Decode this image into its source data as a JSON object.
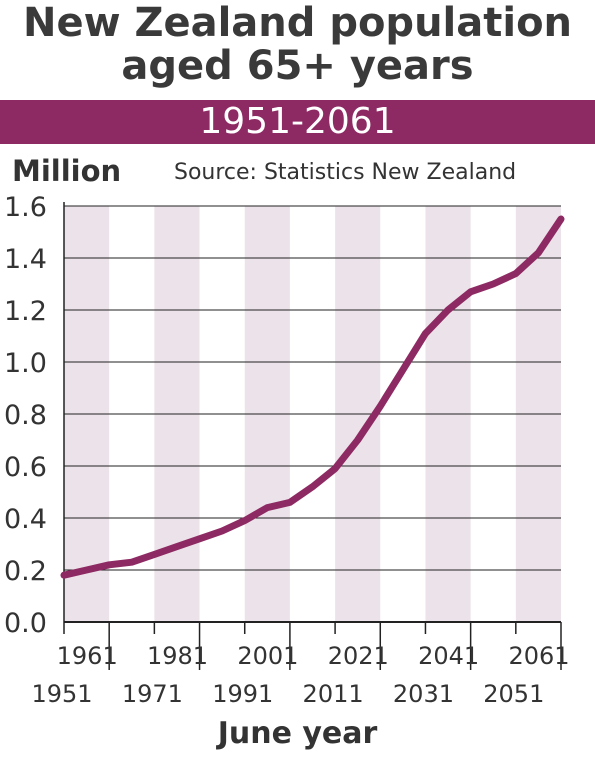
{
  "title_line1": "New Zealand population",
  "title_line2": "aged 65+ years",
  "period_band": "1951-2061",
  "y_axis_unit": "Million",
  "source_note": "Source: Statistics New Zealand",
  "x_axis_title": "June year",
  "colors": {
    "band": "#8e2a63",
    "line": "#8e2a63",
    "stripe": "#ece3ea",
    "grid": "#222222"
  },
  "chart_data": {
    "type": "line",
    "title": "New Zealand population aged 65+ years",
    "subtitle": "1951-2061",
    "xlabel": "June year",
    "ylabel": "Million",
    "xlim": [
      1951,
      2061
    ],
    "ylim": [
      0,
      1.6
    ],
    "yticks": [
      "0.0",
      "0.2",
      "0.4",
      "0.6",
      "0.8",
      "1.0",
      "1.2",
      "1.4",
      "1.6"
    ],
    "xticks_upper": [
      "1961",
      "1981",
      "2001",
      "2021",
      "2041",
      "2061"
    ],
    "xticks_lower": [
      "1951",
      "1971",
      "1991",
      "2011",
      "2031",
      "2051"
    ],
    "grid": true,
    "series": [
      {
        "x": [
          1951,
          1956,
          1961,
          1966,
          1971,
          1976,
          1981,
          1986,
          1991,
          1996,
          2001,
          2006,
          2011,
          2016,
          2021,
          2026,
          2031,
          2036,
          2041,
          2046,
          2051,
          2056,
          2061
        ],
        "values": [
          0.18,
          0.2,
          0.22,
          0.23,
          0.26,
          0.29,
          0.32,
          0.35,
          0.39,
          0.44,
          0.46,
          0.52,
          0.59,
          0.7,
          0.83,
          0.97,
          1.11,
          1.2,
          1.27,
          1.3,
          1.34,
          1.42,
          1.55
        ]
      }
    ]
  }
}
